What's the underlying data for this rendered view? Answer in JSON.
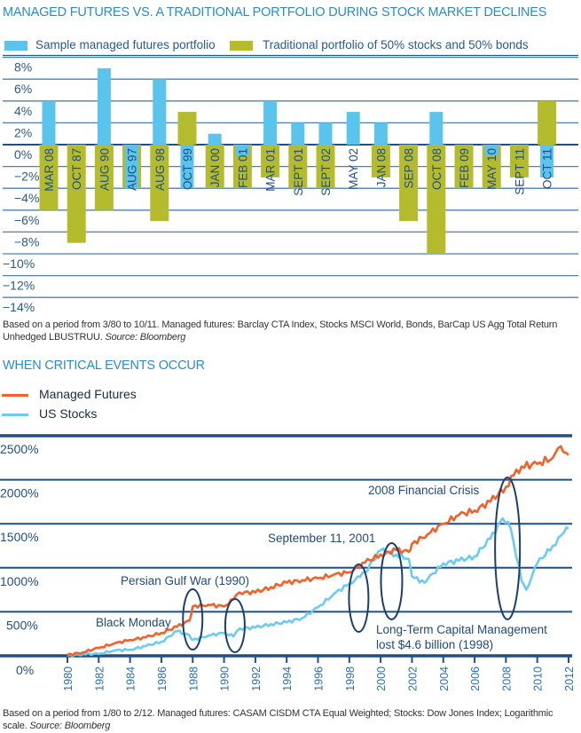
{
  "colors": {
    "title": "#2a8bc9",
    "managed_futures_bar": "#5bc4ec",
    "traditional_bar": "#b4bc2e",
    "gridline": "#1f5a8f",
    "managed_futures_line": "#f2612a",
    "us_stocks_line": "#6ccbf0",
    "annotation": "#1f4a7a"
  },
  "chart_data": [
    {
      "type": "bar",
      "title": "MANAGED FUTURES VS. A TRADITIONAL PORTFOLIO DURING STOCK MARKET DECLINES",
      "xlabel": "",
      "ylabel": "",
      "ylim": [
        -14,
        8
      ],
      "yticks": [
        8,
        6,
        4,
        2,
        0,
        -2,
        -4,
        -6,
        -8,
        -10,
        -12,
        -14
      ],
      "ytick_labels": [
        "8%",
        "6%",
        "4%",
        "2%",
        "0%",
        "−2%",
        "−4%",
        "−6%",
        "−8%",
        "−10%",
        "−12%",
        "−14%"
      ],
      "grid": true,
      "legend_position": "top",
      "categories": [
        "MAR 08",
        "OCT 87",
        "AUG 90",
        "AUG 97",
        "AUG 98",
        "OCT 99",
        "JAN 00",
        "FEB 01",
        "MAR 01",
        "SEPT 01",
        "SEPT 02",
        "MAY 02",
        "JAN 08",
        "SEP 08",
        "OCT 08",
        "FEB 09",
        "MAY 10",
        "SEPT 11",
        "OCT 11"
      ],
      "series": [
        {
          "name": "Sample managed futures portfolio",
          "values": [
            4,
            0,
            7,
            -4,
            6,
            -4,
            1,
            -1,
            4,
            2,
            2,
            3,
            2,
            0,
            3,
            0,
            -1,
            0,
            -3
          ]
        },
        {
          "name": "Traditional portfolio of 50% stocks and 50% bonds",
          "values": [
            -6,
            -9,
            -6,
            -4,
            -7,
            3,
            -4,
            -4,
            -3,
            -4,
            -4,
            0,
            -3,
            -7,
            -10,
            -4,
            -4,
            -3,
            4
          ]
        }
      ],
      "footnote": "Based on a period from 3/80 to 10/11. Managed futures: Barclay CTA Index, Stocks MSCI World, Bonds, BarCap US Agg Total Return Unhedged LBUSTRUU.",
      "source": "Source: Bloomberg"
    },
    {
      "type": "line",
      "title": "WHEN CRITICAL EVENTS OCCUR",
      "xlabel": "",
      "ylabel": "",
      "xlim": [
        1980,
        2012
      ],
      "ylim": [
        0,
        2500
      ],
      "yticks": [
        2500,
        2000,
        1500,
        1000,
        500,
        0
      ],
      "ytick_labels": [
        "2500%",
        "2000%",
        "1500%",
        "1000%",
        "500%",
        "0%"
      ],
      "xticks": [
        "1980",
        "1982",
        "1984",
        "1986",
        "1988",
        "1990",
        "1992",
        "1994",
        "1996",
        "1998",
        "2000",
        "2002",
        "2004",
        "2006",
        "2008",
        "2010",
        "2012"
      ],
      "grid": true,
      "legend_position": "top-left",
      "series": [
        {
          "name": "Managed Futures",
          "x": [
            1980,
            1981,
            1982,
            1983,
            1984,
            1985,
            1986,
            1987,
            1987.8,
            1988,
            1989,
            1990,
            1990.6,
            1991,
            1992,
            1993,
            1994,
            1995,
            1996,
            1997,
            1998,
            1999,
            2000,
            2001,
            2001.8,
            2002,
            2003,
            2004,
            2005,
            2006,
            2007,
            2008,
            2008.5,
            2009,
            2010,
            2011,
            2011.5,
            2012
          ],
          "values": [
            10,
            40,
            90,
            140,
            180,
            210,
            260,
            330,
            400,
            560,
            580,
            560,
            640,
            720,
            720,
            780,
            830,
            860,
            880,
            920,
            950,
            1060,
            1150,
            1200,
            1180,
            1270,
            1380,
            1500,
            1600,
            1650,
            1750,
            1920,
            2050,
            2150,
            2180,
            2250,
            2380,
            2280
          ]
        },
        {
          "name": "US Stocks",
          "x": [
            1980,
            1981,
            1982,
            1983,
            1984,
            1985,
            1986,
            1987,
            1987.8,
            1988,
            1989,
            1990,
            1990.6,
            1991,
            1992,
            1993,
            1994,
            1995,
            1996,
            1997,
            1998,
            1998.7,
            1999,
            2000,
            2001,
            2001.8,
            2002,
            2002.8,
            2003,
            2004,
            2005,
            2006,
            2007,
            2007.8,
            2008.3,
            2009,
            2009.3,
            2010,
            2011,
            2011.7,
            2012
          ],
          "values": [
            0,
            20,
            20,
            60,
            70,
            110,
            160,
            280,
            230,
            180,
            230,
            260,
            220,
            310,
            320,
            360,
            380,
            430,
            550,
            700,
            820,
            900,
            950,
            1200,
            1150,
            1100,
            900,
            830,
            870,
            1050,
            1080,
            1130,
            1330,
            1560,
            1450,
            850,
            750,
            1050,
            1250,
            1400,
            1450
          ]
        }
      ],
      "annotations": [
        "Black Monday",
        "Persian Gulf War (1990)",
        "September 11, 2001",
        "Long-Term Capital Management lost $4.6 billion (1998)",
        "2008 Financial Crisis"
      ],
      "footnote": "Based on a period from 1/80 to 2/12. Managed futures: CASAM CISDM CTA Equal Weighted; Stocks: Dow Jones Index; Logarithmic scale.",
      "source": "Source: Bloomberg"
    }
  ],
  "bar_chart": {
    "title": "MANAGED FUTURES VS. A TRADITIONAL PORTFOLIO DURING STOCK MARKET DECLINES",
    "legend": {
      "managed_futures": "Sample managed futures portfolio",
      "traditional": "Traditional portfolio of 50% stocks and 50% bonds"
    },
    "footnote": "Based on a period from 3/80 to 10/11. Managed futures: Barclay CTA Index, Stocks MSCI World, Bonds, BarCap US Agg Total Return Unhedged LBUSTRUU.",
    "source": "Source: Bloomberg"
  },
  "line_chart": {
    "title": "WHEN CRITICAL EVENTS OCCUR",
    "legend": {
      "managed_futures": "Managed Futures",
      "us_stocks": "US Stocks"
    },
    "annotations": {
      "black_monday": "Black Monday",
      "gulf_war": "Persian Gulf War (1990)",
      "sept11": "September 11, 2001",
      "ltcm_line1": "Long-Term Capital Management",
      "ltcm_line2": "lost $4.6 billion (1998)",
      "crisis_2008": "2008 Financial Crisis"
    },
    "footnote": "Based on a period from 1/80 to 2/12. Managed futures: CASAM CISDM CTA Equal Weighted; Stocks: Dow Jones Index; Logarithmic scale.",
    "source": "Source: Bloomberg"
  }
}
